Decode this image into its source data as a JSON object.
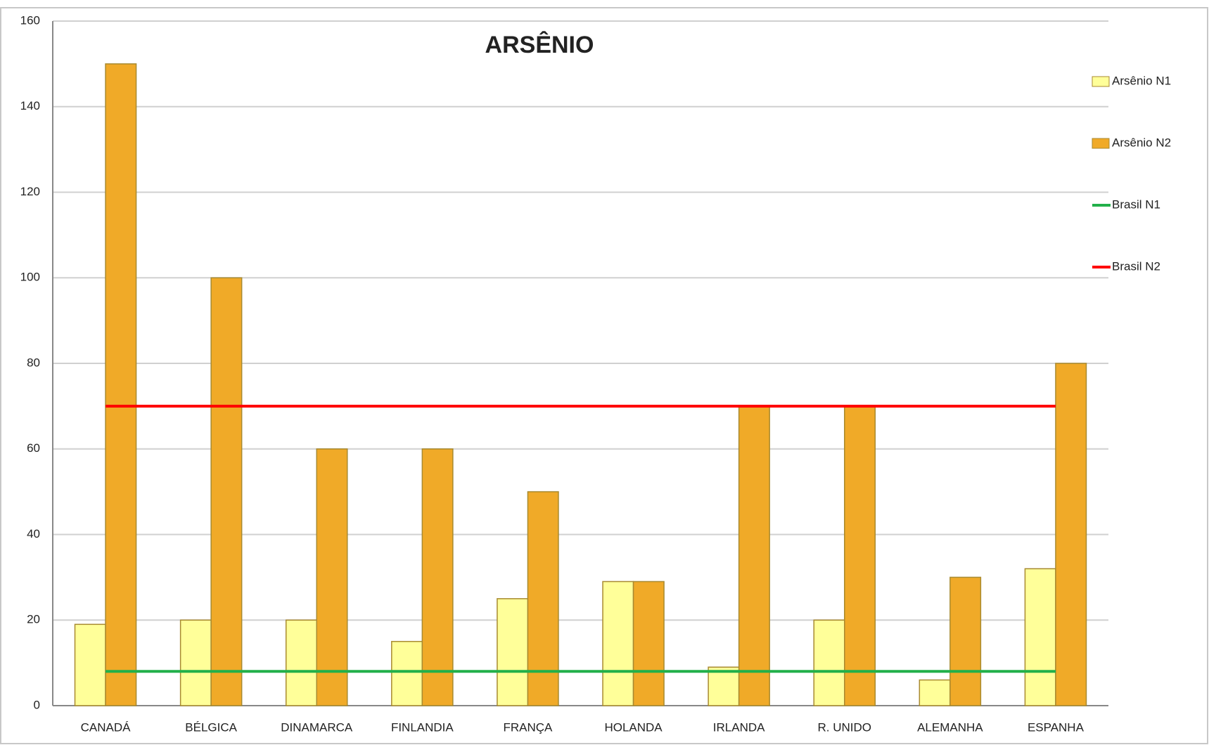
{
  "chart_data": {
    "type": "bar",
    "title": "ARSÊNIO",
    "categories": [
      "CANADÁ",
      "BÉLGICA",
      "DINAMARCA",
      "FINLANDIA",
      "FRANÇA",
      "HOLANDA",
      "IRLANDA",
      "R. UNIDO",
      "ALEMANHA",
      "ESPANHA"
    ],
    "series": [
      {
        "name": "Arsênio N1",
        "type": "bar",
        "color": "#ffff99",
        "values": [
          19,
          20,
          20,
          15,
          25,
          29,
          9,
          20,
          6,
          32
        ]
      },
      {
        "name": "Arsênio N2",
        "type": "bar",
        "color": "#f0aa28",
        "values": [
          150,
          100,
          60,
          60,
          50,
          29,
          70,
          70,
          30,
          80
        ]
      },
      {
        "name": "Brasil N1",
        "type": "line",
        "color": "#22b04a",
        "values": [
          8,
          8,
          8,
          8,
          8,
          8,
          8,
          8,
          8,
          8
        ]
      },
      {
        "name": "Brasil N2",
        "type": "line",
        "color": "#ff0000",
        "values": [
          70,
          70,
          70,
          70,
          70,
          70,
          70,
          70,
          70,
          70
        ]
      }
    ],
    "ylim": [
      0,
      160
    ],
    "yticks": [
      0,
      20,
      40,
      60,
      80,
      100,
      120,
      140,
      160
    ],
    "grid": true,
    "legend": "right"
  }
}
